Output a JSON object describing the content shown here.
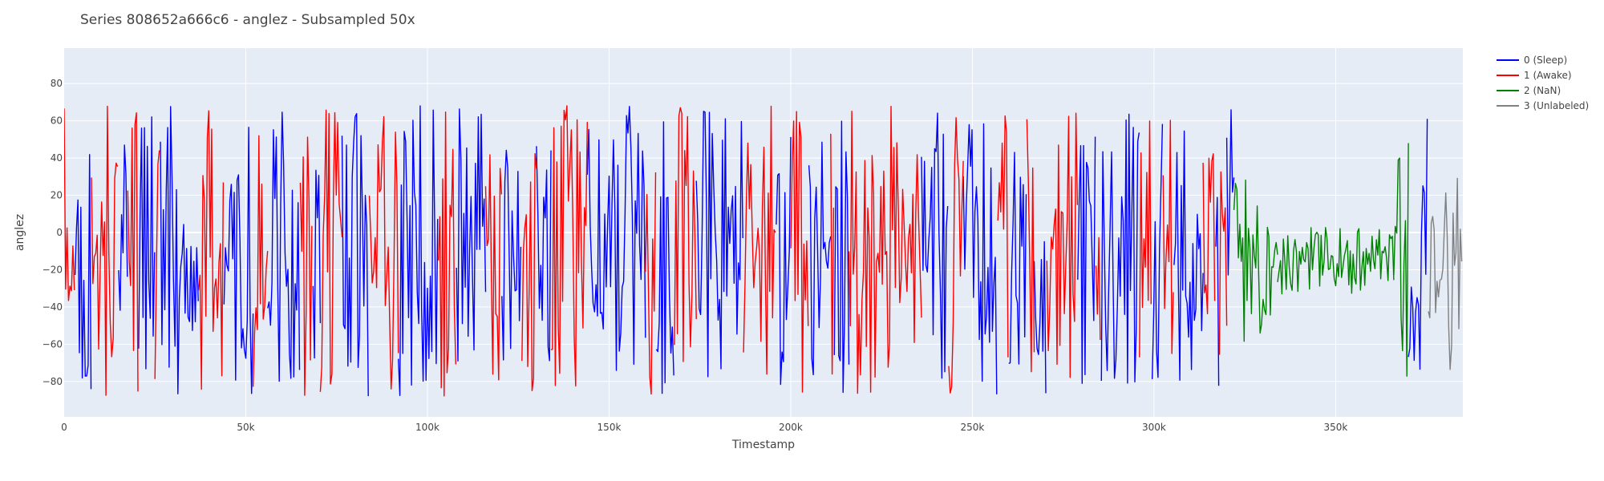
{
  "chart_data": {
    "type": "line",
    "title": "Series 808652a666c6 - anglez - Subsampled 50x",
    "xlabel": "Timestamp",
    "ylabel": "anglez",
    "xlim": [
      0,
      385000
    ],
    "ylim": [
      -99,
      99
    ],
    "x_ticks": [
      0,
      50000,
      100000,
      150000,
      200000,
      250000,
      300000,
      350000
    ],
    "x_tick_labels": [
      "0",
      "50k",
      "100k",
      "150k",
      "200k",
      "250k",
      "300k",
      "350k"
    ],
    "y_ticks": [
      -80,
      -60,
      -40,
      -20,
      0,
      20,
      40,
      60,
      80
    ],
    "y_tick_labels": [
      "−80",
      "−60",
      "−40",
      "−20",
      "0",
      "20",
      "40",
      "60",
      "80"
    ],
    "grid": true,
    "legend_position": "right",
    "background_color": "#e5ecf6",
    "sample_step": 400,
    "value_range": [
      -89,
      88
    ],
    "series": [
      {
        "name": "0 (Sleep)",
        "color": "#0000ff",
        "style": "high-amplitude",
        "segments": [
          [
            3000,
            7500
          ],
          [
            15000,
            17500
          ],
          [
            20500,
            25000
          ],
          [
            26500,
            37000
          ],
          [
            44000,
            52000
          ],
          [
            56000,
            65000
          ],
          [
            68500,
            70500
          ],
          [
            76500,
            84000
          ],
          [
            92000,
            103000
          ],
          [
            108000,
            116000
          ],
          [
            120500,
            126000
          ],
          [
            130000,
            134000
          ],
          [
            144000,
            160000
          ],
          [
            163000,
            168000
          ],
          [
            174000,
            187000
          ],
          [
            196000,
            200000
          ],
          [
            205000,
            211000
          ],
          [
            212000,
            216000
          ],
          [
            236000,
            243500
          ],
          [
            247500,
            257000
          ],
          [
            260000,
            265000
          ],
          [
            267000,
            270500
          ],
          [
            279000,
            284000
          ],
          [
            285500,
            296000
          ],
          [
            299500,
            302500
          ],
          [
            305500,
            313500
          ],
          [
            317000,
            318000
          ],
          [
            320000,
            322000
          ],
          [
            370000,
            375500
          ]
        ]
      },
      {
        "name": "1 (Awake)",
        "color": "#ff0000",
        "style": "high-amplitude",
        "segments": [
          [
            0,
            3000
          ],
          [
            7500,
            15000
          ],
          [
            17500,
            20500
          ],
          [
            25000,
            26500
          ],
          [
            37000,
            44000
          ],
          [
            52000,
            56000
          ],
          [
            65000,
            68500
          ],
          [
            70500,
            76500
          ],
          [
            84000,
            92000
          ],
          [
            103000,
            108000
          ],
          [
            116000,
            120500
          ],
          [
            126000,
            130000
          ],
          [
            134000,
            144000
          ],
          [
            160000,
            163000
          ],
          [
            168000,
            174000
          ],
          [
            187000,
            196000
          ],
          [
            200000,
            205000
          ],
          [
            211000,
            212000
          ],
          [
            216000,
            236000
          ],
          [
            243500,
            247500
          ],
          [
            257000,
            260000
          ],
          [
            265000,
            267000
          ],
          [
            270500,
            279000
          ],
          [
            284000,
            285500
          ],
          [
            296000,
            299500
          ],
          [
            302500,
            305500
          ],
          [
            313500,
            317000
          ],
          [
            318000,
            320000
          ]
        ]
      },
      {
        "name": "2 (NaN)",
        "color": "#008000",
        "style": "decaying",
        "segments": [
          [
            322000,
            334000
          ],
          [
            334000,
            366000
          ],
          [
            366000,
            370000
          ]
        ]
      },
      {
        "name": "3 (Unlabeled)",
        "color": "#808080",
        "style": "medium-amplitude",
        "segments": [
          [
            375500,
            385000
          ]
        ]
      }
    ]
  }
}
